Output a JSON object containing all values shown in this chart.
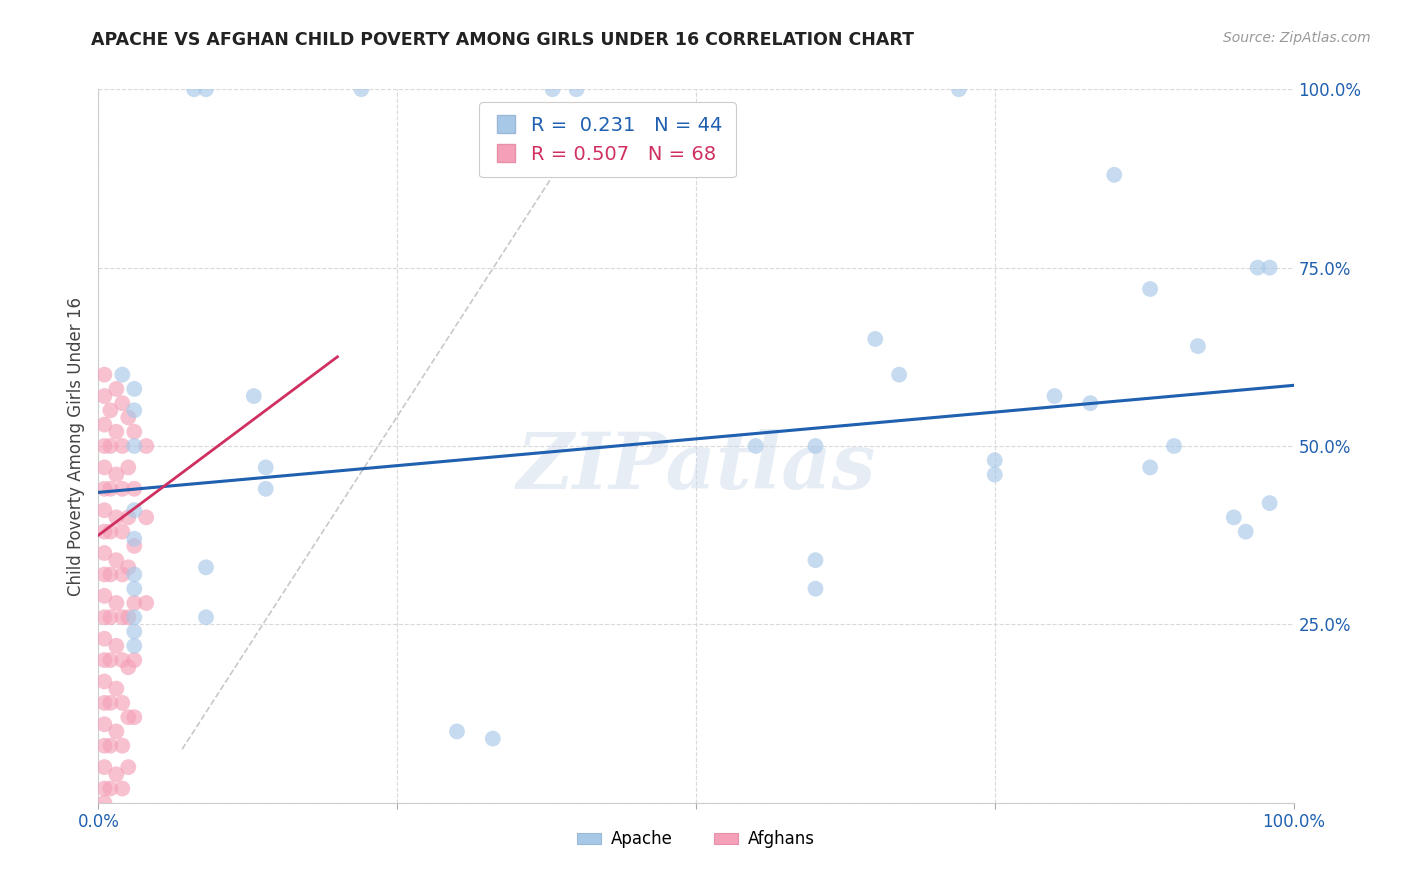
{
  "title": "APACHE VS AFGHAN CHILD POVERTY AMONG GIRLS UNDER 16 CORRELATION CHART",
  "source": "Source: ZipAtlas.com",
  "ylabel": "Child Poverty Among Girls Under 16",
  "xlim": [
    0,
    1
  ],
  "ylim": [
    0,
    1
  ],
  "xticks": [
    0.0,
    0.25,
    0.5,
    0.75,
    1.0
  ],
  "yticks": [
    0.0,
    0.25,
    0.5,
    0.75,
    1.0
  ],
  "xticklabels": [
    "0.0%",
    "",
    "",
    "",
    "100.0%"
  ],
  "yticklabels_right": [
    "",
    "25.0%",
    "50.0%",
    "75.0%",
    "100.0%"
  ],
  "watermark": "ZIPatlas",
  "apache_color": "#a8c8e8",
  "afghan_color": "#f4a0b8",
  "apache_line_color": "#2060b0",
  "afghan_line_color": "#d03060",
  "apache_R": "0.231",
  "apache_N": "44",
  "afghan_R": "0.507",
  "afghan_N": "68",
  "apache_points": [
    [
      0.02,
      0.6
    ],
    [
      0.03,
      0.58
    ],
    [
      0.08,
      1.0
    ],
    [
      0.09,
      1.0
    ],
    [
      0.22,
      1.0
    ],
    [
      0.38,
      1.0
    ],
    [
      0.4,
      1.0
    ],
    [
      0.72,
      1.0
    ],
    [
      0.03,
      0.55
    ],
    [
      0.03,
      0.5
    ],
    [
      0.13,
      0.57
    ],
    [
      0.14,
      0.47
    ],
    [
      0.14,
      0.44
    ],
    [
      0.03,
      0.41
    ],
    [
      0.03,
      0.37
    ],
    [
      0.03,
      0.32
    ],
    [
      0.03,
      0.3
    ],
    [
      0.03,
      0.26
    ],
    [
      0.03,
      0.24
    ],
    [
      0.03,
      0.22
    ],
    [
      0.09,
      0.33
    ],
    [
      0.09,
      0.26
    ],
    [
      0.3,
      0.1
    ],
    [
      0.33,
      0.09
    ],
    [
      0.6,
      0.3
    ],
    [
      0.6,
      0.34
    ],
    [
      0.65,
      0.65
    ],
    [
      0.67,
      0.6
    ],
    [
      0.75,
      0.48
    ],
    [
      0.75,
      0.46
    ],
    [
      0.8,
      0.57
    ],
    [
      0.83,
      0.56
    ],
    [
      0.85,
      0.88
    ],
    [
      0.88,
      0.72
    ],
    [
      0.88,
      0.47
    ],
    [
      0.9,
      0.5
    ],
    [
      0.92,
      0.64
    ],
    [
      0.95,
      0.4
    ],
    [
      0.96,
      0.38
    ],
    [
      0.97,
      0.75
    ],
    [
      0.98,
      0.42
    ],
    [
      0.55,
      0.5
    ],
    [
      0.6,
      0.5
    ],
    [
      0.98,
      0.75
    ]
  ],
  "afghan_points": [
    [
      0.005,
      0.6
    ],
    [
      0.005,
      0.57
    ],
    [
      0.005,
      0.53
    ],
    [
      0.005,
      0.5
    ],
    [
      0.005,
      0.47
    ],
    [
      0.005,
      0.44
    ],
    [
      0.005,
      0.41
    ],
    [
      0.005,
      0.38
    ],
    [
      0.005,
      0.35
    ],
    [
      0.005,
      0.32
    ],
    [
      0.005,
      0.29
    ],
    [
      0.005,
      0.26
    ],
    [
      0.005,
      0.23
    ],
    [
      0.005,
      0.2
    ],
    [
      0.005,
      0.17
    ],
    [
      0.005,
      0.14
    ],
    [
      0.005,
      0.11
    ],
    [
      0.005,
      0.08
    ],
    [
      0.005,
      0.05
    ],
    [
      0.005,
      0.02
    ],
    [
      0.005,
      0.0
    ],
    [
      0.01,
      0.55
    ],
    [
      0.01,
      0.5
    ],
    [
      0.01,
      0.44
    ],
    [
      0.01,
      0.38
    ],
    [
      0.01,
      0.32
    ],
    [
      0.01,
      0.26
    ],
    [
      0.01,
      0.2
    ],
    [
      0.01,
      0.14
    ],
    [
      0.01,
      0.08
    ],
    [
      0.01,
      0.02
    ],
    [
      0.015,
      0.58
    ],
    [
      0.015,
      0.52
    ],
    [
      0.015,
      0.46
    ],
    [
      0.015,
      0.4
    ],
    [
      0.015,
      0.34
    ],
    [
      0.015,
      0.28
    ],
    [
      0.015,
      0.22
    ],
    [
      0.015,
      0.16
    ],
    [
      0.015,
      0.1
    ],
    [
      0.015,
      0.04
    ],
    [
      0.02,
      0.56
    ],
    [
      0.02,
      0.5
    ],
    [
      0.02,
      0.44
    ],
    [
      0.02,
      0.38
    ],
    [
      0.02,
      0.32
    ],
    [
      0.02,
      0.26
    ],
    [
      0.02,
      0.2
    ],
    [
      0.02,
      0.14
    ],
    [
      0.02,
      0.08
    ],
    [
      0.02,
      0.02
    ],
    [
      0.025,
      0.54
    ],
    [
      0.025,
      0.47
    ],
    [
      0.025,
      0.4
    ],
    [
      0.025,
      0.33
    ],
    [
      0.025,
      0.26
    ],
    [
      0.025,
      0.19
    ],
    [
      0.025,
      0.12
    ],
    [
      0.025,
      0.05
    ],
    [
      0.03,
      0.52
    ],
    [
      0.03,
      0.44
    ],
    [
      0.03,
      0.36
    ],
    [
      0.03,
      0.28
    ],
    [
      0.03,
      0.2
    ],
    [
      0.03,
      0.12
    ],
    [
      0.04,
      0.5
    ],
    [
      0.04,
      0.4
    ],
    [
      0.04,
      0.28
    ]
  ],
  "apache_trendline_x": [
    0.0,
    1.0
  ],
  "apache_trendline_y": [
    0.435,
    0.585
  ],
  "afghan_trendline_x": [
    0.0,
    0.2
  ],
  "afghan_trendline_y": [
    0.375,
    0.625
  ],
  "diagonal_line_x": [
    0.07,
    0.4
  ],
  "diagonal_line_y": [
    0.075,
    0.93
  ]
}
